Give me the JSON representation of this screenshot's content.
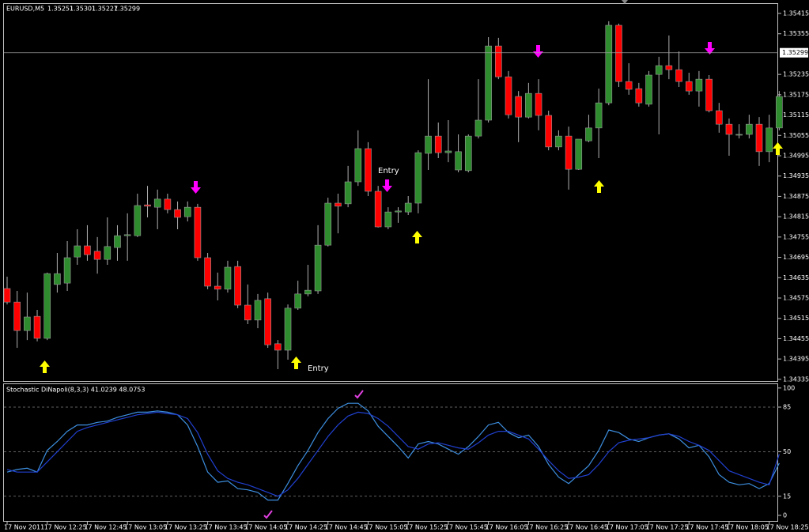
{
  "chart_data": [
    {
      "type": "candlestick",
      "symbol": "EURUSD,M5",
      "ohlc": [
        1.35251,
        1.35301,
        1.35227,
        1.35299
      ],
      "categories": [
        "17 Nov 2011",
        null,
        null,
        null,
        "17 Nov 12:25",
        null,
        null,
        null,
        "17 Nov 12:45",
        null,
        null,
        null,
        "17 Nov 13:05",
        null,
        null,
        null,
        "17 Nov 13:25",
        null,
        null,
        null,
        "17 Nov 13:45",
        null,
        null,
        null,
        "17 Nov 14:05",
        null,
        null,
        null,
        "17 Nov 14:25",
        null,
        null,
        null,
        "17 Nov 14:45",
        null,
        null,
        null,
        "17 Nov 15:05",
        null,
        null,
        null,
        "17 Nov 15:25",
        null,
        null,
        null,
        "17 Nov 15:45",
        null,
        null,
        null,
        "17 Nov 16:05",
        null,
        null,
        null,
        "17 Nov 16:25",
        null,
        null,
        null,
        "17 Nov 16:45",
        null,
        null,
        null,
        "17 Nov 17:05",
        null,
        null,
        null,
        "17 Nov 17:25",
        null,
        null,
        null,
        "17 Nov 17:45",
        null,
        null,
        null,
        "17 Nov 18:05",
        null,
        null,
        null,
        "17 Nov 18:25",
        null
      ],
      "open": [
        1.34603,
        1.34563,
        1.34479,
        1.34521,
        1.34456,
        1.34615,
        1.34619,
        1.34696,
        1.34729,
        1.34713,
        1.34689,
        1.34724,
        1.34759,
        1.34759,
        1.3485,
        1.34843,
        1.34867,
        1.34836,
        1.34815,
        1.34843,
        1.34694,
        1.3461,
        1.34601,
        1.34668,
        1.34554,
        1.3451,
        1.34573,
        1.3444,
        1.34421,
        1.34545,
        1.34587,
        1.34596,
        1.34731,
        1.34855,
        1.34853,
        1.34918,
        1.35016,
        1.3489,
        1.34785,
        1.34829,
        1.34829,
        1.34855,
        1.35002,
        1.35053,
        1.35004,
        1.34953,
        1.34951,
        1.35053,
        1.351,
        1.35319,
        1.35228,
        1.3517,
        1.35109,
        1.35179,
        1.35114,
        1.35021,
        1.35053,
        1.34955,
        1.35039,
        1.35077,
        1.35151,
        1.3538,
        1.35214,
        1.35193,
        1.35147,
        1.35235,
        1.35261,
        1.35249,
        1.35214,
        1.35186,
        1.35221,
        1.35128,
        1.35088,
        1.35056,
        1.35058,
        1.35088,
        1.35007,
        1.35077
      ],
      "high": [
        1.34638,
        1.34596,
        1.34591,
        1.3454,
        1.3465,
        1.34708,
        1.34743,
        1.34778,
        1.3479,
        1.34755,
        1.34813,
        1.3479,
        1.34825,
        1.34883,
        1.34906,
        1.34895,
        1.34883,
        1.3486,
        1.3486,
        1.34853,
        1.34708,
        1.3465,
        1.34685,
        1.34685,
        1.34615,
        1.34587,
        1.34591,
        1.34451,
        1.34556,
        1.34626,
        1.34673,
        1.3479,
        1.34871,
        1.34883,
        1.34965,
        1.3507,
        1.35035,
        1.34906,
        1.34843,
        1.34843,
        1.34876,
        1.35011,
        1.35221,
        1.35093,
        1.351,
        1.35058,
        1.35058,
        1.35221,
        1.35345,
        1.35343,
        1.35245,
        1.35186,
        1.3521,
        1.35221,
        1.35128,
        1.3507,
        1.35081,
        1.35044,
        1.35116,
        1.35193,
        1.35392,
        1.35385,
        1.35268,
        1.3521,
        1.35245,
        1.35287,
        1.3535,
        1.35303,
        1.3524,
        1.35245,
        1.35233,
        1.35151,
        1.35105,
        1.35088,
        1.35116,
        1.35109,
        1.35116,
        1.35186
      ],
      "low": [
        1.34556,
        1.34428,
        1.34451,
        1.34447,
        1.34451,
        1.34591,
        1.34596,
        1.34673,
        1.34685,
        1.34647,
        1.34673,
        1.34685,
        1.34685,
        1.34755,
        1.34813,
        1.34778,
        1.34825,
        1.34778,
        1.34801,
        1.34685,
        1.34601,
        1.34568,
        1.34591,
        1.34545,
        1.34498,
        1.34486,
        1.34428,
        1.34365,
        1.34393,
        1.3454,
        1.3458,
        1.34587,
        1.34727,
        1.34766,
        1.34843,
        1.34906,
        1.34876,
        1.34783,
        1.34778,
        1.34797,
        1.3482,
        1.34825,
        1.34953,
        1.34988,
        1.34976,
        1.34946,
        1.34946,
        1.35046,
        1.35093,
        1.35221,
        1.35105,
        1.35035,
        1.35105,
        1.3507,
        1.35011,
        1.35011,
        1.34895,
        1.34953,
        1.35035,
        1.34988,
        1.35144,
        1.35198,
        1.35175,
        1.3514,
        1.3514,
        1.35058,
        1.35221,
        1.35198,
        1.35175,
        1.3514,
        1.35123,
        1.35063,
        1.34995,
        1.35046,
        1.35046,
        1.34965,
        1.34976,
        1.3507
      ],
      "close": [
        1.34563,
        1.34479,
        1.34519,
        1.34456,
        1.34647,
        1.34647,
        1.34694,
        1.34729,
        1.34703,
        1.34689,
        1.34727,
        1.34759,
        1.34762,
        1.34848,
        1.34846,
        1.34867,
        1.34836,
        1.34813,
        1.34843,
        1.34694,
        1.3461,
        1.34601,
        1.34666,
        1.34554,
        1.3451,
        1.34568,
        1.34437,
        1.34421,
        1.34545,
        1.34587,
        1.34598,
        1.34731,
        1.34855,
        1.34846,
        1.34918,
        1.35016,
        1.3489,
        1.34785,
        1.34829,
        1.34832,
        1.34855,
        1.35004,
        1.35053,
        1.35004,
        1.35009,
        1.35007,
        1.35053,
        1.351,
        1.35319,
        1.35228,
        1.35116,
        1.35109,
        1.35179,
        1.35114,
        1.35021,
        1.35053,
        1.34955,
        1.35044,
        1.35077,
        1.35151,
        1.3538,
        1.35214,
        1.35191,
        1.35151,
        1.35233,
        1.35261,
        1.35249,
        1.35214,
        1.35186,
        1.35221,
        1.35128,
        1.35088,
        1.35058,
        1.35058,
        1.35088,
        1.35007,
        1.35077,
        1.3517
      ],
      "up_color": "#2e8b2e",
      "down_color": "#ff0000",
      "ylim": [
        1.3433,
        1.35443
      ],
      "yticks": [
        1.35415,
        1.35355,
        1.35235,
        1.35175,
        1.35115,
        1.35055,
        1.34995,
        1.34935,
        1.34875,
        1.34815,
        1.34755,
        1.34695,
        1.34635,
        1.34575,
        1.34515,
        1.34455,
        1.34395,
        1.34335
      ],
      "annotations": [
        "Entry",
        "Entry"
      ]
    },
    {
      "type": "line",
      "title": "Stochastic DiNapoli(8,3,3) 41.0239 48.0753",
      "series": [
        {
          "color": "#3d8fe0",
          "values": [
            34,
            36,
            37,
            34,
            51,
            58,
            66,
            71,
            71,
            73,
            74,
            77,
            79,
            81,
            81,
            82,
            81,
            79,
            71,
            54,
            34,
            26,
            27,
            21,
            20,
            18,
            12,
            12,
            25,
            39,
            51,
            65,
            76,
            84,
            88,
            88,
            82,
            70,
            62,
            54,
            45,
            56,
            58,
            56,
            52,
            48,
            54,
            62,
            71,
            73,
            65,
            61,
            63,
            54,
            40,
            30,
            25,
            32,
            39,
            51,
            67,
            65,
            60,
            58,
            61,
            63,
            64,
            60,
            53,
            55,
            46,
            32,
            26,
            24,
            25,
            21,
            25,
            41.0239
          ]
        },
        {
          "color": "#2040d0",
          "values": [
            36,
            34,
            34,
            34,
            42,
            50,
            58,
            66,
            69,
            71,
            73,
            75,
            77,
            79,
            80,
            81,
            80,
            79,
            76,
            65,
            48,
            35,
            29,
            26,
            24,
            21,
            18,
            15,
            20,
            29,
            40,
            51,
            62,
            71,
            78,
            81,
            80,
            76,
            70,
            62,
            54,
            52,
            56,
            57,
            55,
            53,
            52,
            57,
            63,
            66,
            66,
            63,
            60,
            52,
            43,
            35,
            29,
            30,
            32,
            40,
            50,
            57,
            59,
            60,
            61,
            63,
            64,
            62,
            58,
            55,
            51,
            43,
            35,
            32,
            29,
            26,
            24,
            48.0753
          ]
        }
      ],
      "ylim": [
        -5,
        103
      ],
      "yticks": [
        0,
        15,
        50,
        85,
        100
      ],
      "levels": [
        15,
        50,
        85
      ]
    }
  ]
}
